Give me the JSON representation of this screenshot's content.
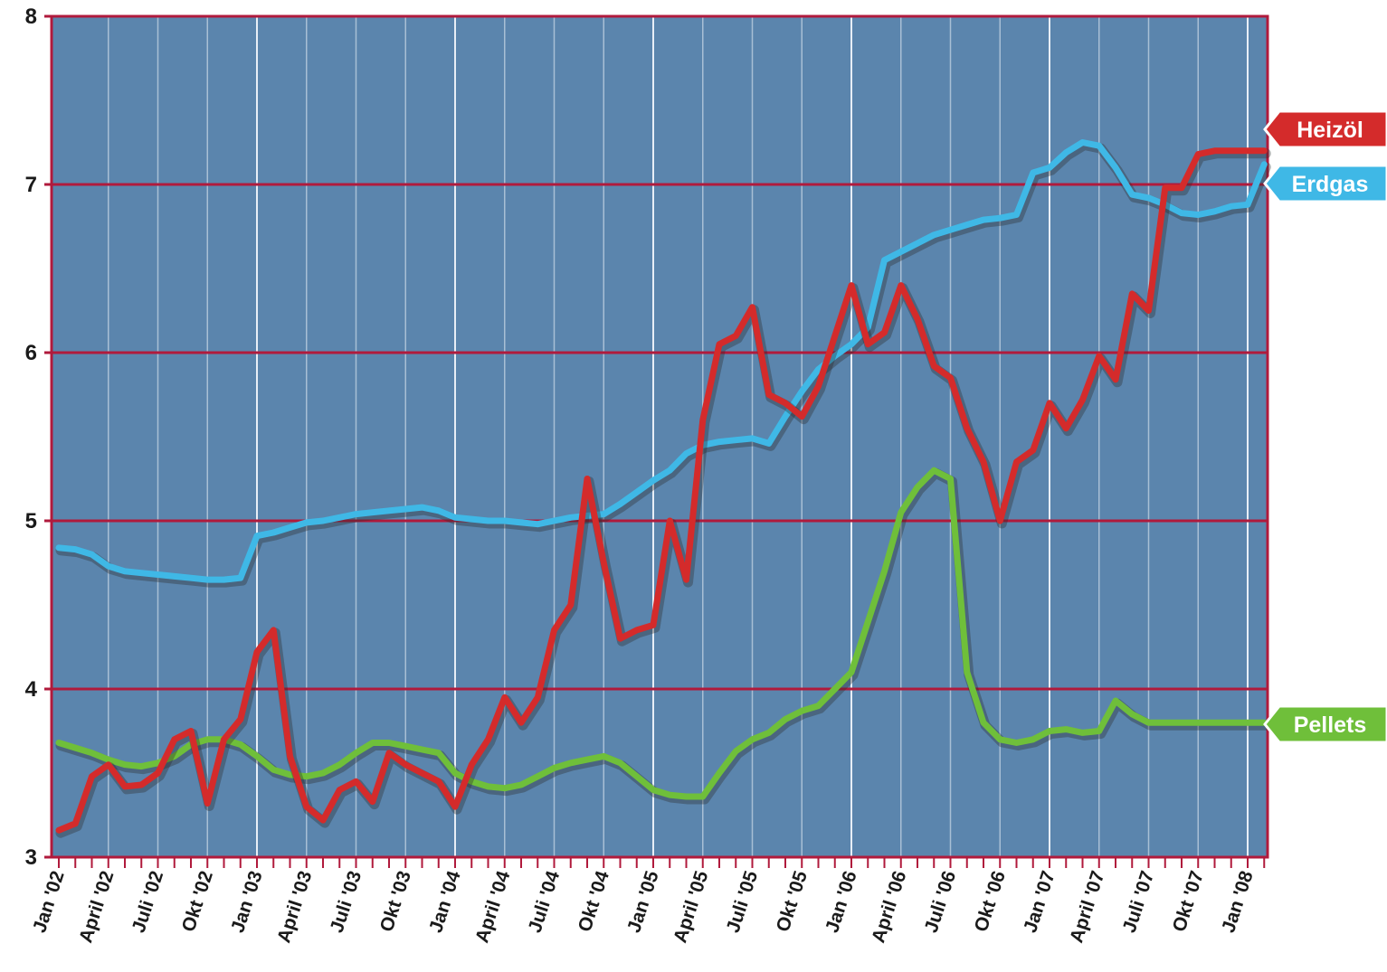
{
  "chart_data": {
    "type": "line",
    "ylim": [
      3,
      8
    ],
    "y_ticks": [
      "3",
      "4",
      "5",
      "6",
      "7",
      "8"
    ],
    "grid": true,
    "legend_placement": "right",
    "plot_background": "#5b85ad",
    "grid_color": "#b01a3c",
    "vgrid_color": "#e8eef6",
    "x_tick_labels": [
      "Jan '02",
      "April '02",
      "Juli '02",
      "Okt '02",
      "Jan '03",
      "April '03",
      "Juli '03",
      "Okt '03",
      "Jan '04",
      "April '04",
      "Juli '04",
      "Okt '04",
      "Jan '05",
      "April '05",
      "Juli '05",
      "Okt '05",
      "Jan '06",
      "April '06",
      "Juli '06",
      "Okt '06",
      "Jan '07",
      "April '07",
      "Juli '07",
      "Okt '07",
      "Jan '08"
    ],
    "series": [
      {
        "name": "Erdgas",
        "color": "#3fb8e6",
        "x": [
          0,
          1,
          2,
          3,
          4,
          5,
          6,
          7,
          8,
          9,
          10,
          11,
          12,
          13,
          14,
          15,
          16,
          17,
          18,
          19,
          20,
          21,
          22,
          23,
          24,
          25,
          26,
          27,
          28,
          29,
          30,
          31,
          32,
          33,
          34,
          35,
          36,
          37,
          38,
          39,
          40,
          41,
          42,
          43,
          44,
          45,
          46,
          47,
          48,
          49,
          50,
          51,
          52,
          53,
          54,
          55,
          56,
          57,
          58,
          59,
          60,
          61,
          62,
          63,
          64,
          65,
          66,
          67,
          68,
          69,
          70,
          71,
          72,
          73
        ],
        "values": [
          4.84,
          4.83,
          4.8,
          4.73,
          4.7,
          4.69,
          4.68,
          4.67,
          4.66,
          4.65,
          4.65,
          4.66,
          4.91,
          4.93,
          4.96,
          4.99,
          5.0,
          5.02,
          5.04,
          5.05,
          5.06,
          5.07,
          5.08,
          5.06,
          5.02,
          5.01,
          5.0,
          5.0,
          4.99,
          4.98,
          5.0,
          5.02,
          5.03,
          5.04,
          5.1,
          5.17,
          5.24,
          5.3,
          5.4,
          5.45,
          5.47,
          5.48,
          5.49,
          5.46,
          5.62,
          5.77,
          5.9,
          5.98,
          6.05,
          6.15,
          6.55,
          6.6,
          6.65,
          6.7,
          6.73,
          6.76,
          6.79,
          6.8,
          6.82,
          7.07,
          7.1,
          7.19,
          7.25,
          7.23,
          7.1,
          6.94,
          6.92,
          6.88,
          6.83,
          6.82,
          6.84,
          6.87,
          6.88,
          7.12
        ]
      },
      {
        "name": "Heizöl",
        "color": "#d42b2b",
        "x": [
          0,
          1,
          2,
          3,
          4,
          5,
          6,
          7,
          8,
          9,
          10,
          11,
          12,
          13,
          14,
          15,
          16,
          17,
          18,
          19,
          20,
          21,
          22,
          23,
          24,
          25,
          26,
          27,
          28,
          29,
          30,
          31,
          32,
          33,
          34,
          35,
          36,
          37,
          38,
          39,
          40,
          41,
          42,
          43,
          44,
          45,
          46,
          47,
          48,
          49,
          50,
          51,
          52,
          53,
          54,
          55,
          56,
          57,
          58,
          59,
          60,
          61,
          62,
          63,
          64,
          65,
          66,
          67,
          68,
          69,
          70,
          71,
          72,
          73
        ],
        "values": [
          3.16,
          3.2,
          3.48,
          3.55,
          3.42,
          3.43,
          3.5,
          3.7,
          3.75,
          3.32,
          3.7,
          3.82,
          4.22,
          4.35,
          3.6,
          3.3,
          3.22,
          3.4,
          3.45,
          3.33,
          3.62,
          3.55,
          3.5,
          3.45,
          3.3,
          3.55,
          3.7,
          3.95,
          3.8,
          3.95,
          4.35,
          4.5,
          5.25,
          4.75,
          4.3,
          4.35,
          4.38,
          5.0,
          4.65,
          5.6,
          6.05,
          6.1,
          6.27,
          5.75,
          5.7,
          5.62,
          5.8,
          6.1,
          6.4,
          6.05,
          6.12,
          6.4,
          6.2,
          5.92,
          5.85,
          5.55,
          5.35,
          5.0,
          5.35,
          5.42,
          5.7,
          5.55,
          5.72,
          5.98,
          5.84,
          6.35,
          6.25,
          6.98,
          6.98,
          7.18,
          7.2,
          7.2,
          7.2,
          7.2
        ]
      },
      {
        "name": "Pellets",
        "color": "#6fbf3a",
        "x": [
          0,
          1,
          2,
          3,
          4,
          5,
          6,
          7,
          8,
          9,
          10,
          11,
          12,
          13,
          14,
          15,
          16,
          17,
          18,
          19,
          20,
          21,
          22,
          23,
          24,
          25,
          26,
          27,
          28,
          29,
          30,
          31,
          32,
          33,
          34,
          35,
          36,
          37,
          38,
          39,
          40,
          41,
          42,
          43,
          44,
          45,
          46,
          47,
          48,
          49,
          50,
          51,
          52,
          53,
          54,
          55,
          56,
          57,
          58,
          59,
          60,
          61,
          62,
          63,
          64,
          65,
          66,
          67,
          68,
          69,
          70,
          71,
          72,
          73
        ],
        "values": [
          3.68,
          3.65,
          3.62,
          3.58,
          3.55,
          3.54,
          3.56,
          3.6,
          3.67,
          3.7,
          3.7,
          3.67,
          3.6,
          3.52,
          3.49,
          3.48,
          3.5,
          3.55,
          3.62,
          3.68,
          3.68,
          3.66,
          3.64,
          3.62,
          3.5,
          3.45,
          3.42,
          3.41,
          3.43,
          3.48,
          3.53,
          3.56,
          3.58,
          3.6,
          3.56,
          3.48,
          3.4,
          3.37,
          3.36,
          3.36,
          3.5,
          3.63,
          3.7,
          3.74,
          3.82,
          3.87,
          3.9,
          4.0,
          4.1,
          4.4,
          4.7,
          5.05,
          5.2,
          5.3,
          5.25,
          4.1,
          3.8,
          3.7,
          3.68,
          3.7,
          3.75,
          3.76,
          3.74,
          3.75,
          3.93,
          3.85,
          3.8,
          3.8,
          3.8,
          3.8,
          3.8,
          3.8,
          3.8,
          3.8
        ]
      }
    ]
  }
}
